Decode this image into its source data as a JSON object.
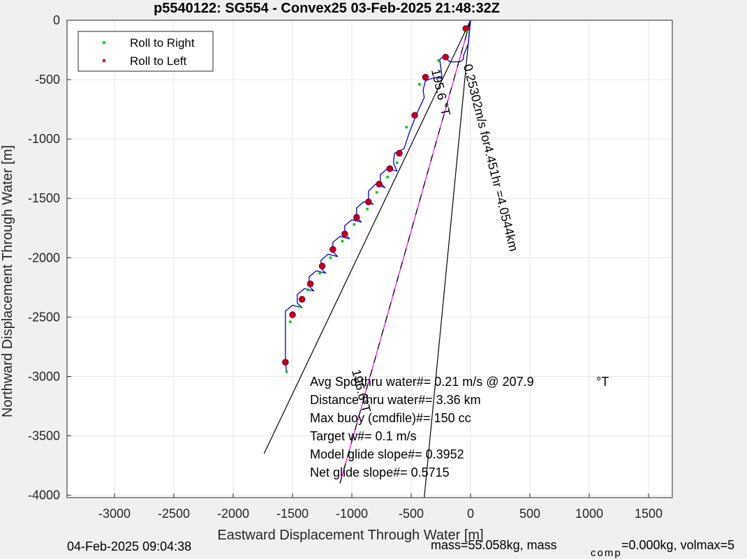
{
  "chart_data": {
    "type": "scatter",
    "title": "p5540122: SG554 - Convex25 03-Feb-2025 21:48:32Z",
    "xlabel": "Eastward Displacement Through Water [m]",
    "ylabel": "Northward Displacement Through Water [m]",
    "xlim": [
      -3400,
      1700
    ],
    "ylim": [
      -4020,
      0
    ],
    "xticks": [
      -3000,
      -2500,
      -2000,
      -1500,
      -1000,
      -500,
      0,
      500,
      1000,
      1500
    ],
    "xtick_labels": [
      "-3000",
      "-2500",
      "-2000",
      "-1500",
      "-1000",
      "-500",
      "0",
      "500",
      "1000",
      "1500"
    ],
    "yticks": [
      0,
      -500,
      -1000,
      -1500,
      -2000,
      -2500,
      -3000,
      -3500,
      -4000
    ],
    "ytick_labels": [
      "0",
      "-500",
      "-1000",
      "-1500",
      "-2000",
      "-2500",
      "-3000",
      "-3500",
      "-4000"
    ],
    "grid": true,
    "legend": {
      "position": "top-left",
      "entries": [
        {
          "label": "Roll to Right",
          "color": "#00e600"
        },
        {
          "label": "Roll to Left",
          "color": "#e60000"
        }
      ]
    },
    "track": {
      "color": "#0000cc",
      "x": [
        0,
        -20,
        -60,
        -60,
        -90,
        -170,
        -230,
        -260,
        -240,
        -250,
        -300,
        -380,
        -400,
        -390,
        -450,
        -510,
        -560,
        -640,
        -650,
        -620,
        -700,
        -760,
        -760,
        -720,
        -800,
        -860,
        -860,
        -820,
        -900,
        -960,
        -960,
        -920,
        -1000,
        -1060,
        -1060,
        -1020,
        -1100,
        -1160,
        -1160,
        -1120,
        -1200,
        -1260,
        -1260,
        -1220,
        -1300,
        -1360,
        -1360,
        -1320,
        -1400,
        -1460,
        -1460,
        -1420,
        -1500,
        -1560,
        -1560,
        -1550
      ],
      "y": [
        0,
        -200,
        -300,
        -330,
        -350,
        -350,
        -310,
        -330,
        -480,
        -490,
        -480,
        -510,
        -590,
        -650,
        -780,
        -930,
        -1080,
        -1120,
        -1200,
        -1270,
        -1250,
        -1300,
        -1370,
        -1410,
        -1380,
        -1440,
        -1520,
        -1550,
        -1530,
        -1580,
        -1660,
        -1700,
        -1680,
        -1730,
        -1800,
        -1840,
        -1820,
        -1870,
        -1950,
        -1990,
        -1970,
        -2020,
        -2090,
        -2130,
        -2110,
        -2160,
        -2240,
        -2280,
        -2260,
        -2310,
        -2380,
        -2420,
        -2400,
        -2450,
        -2880,
        -2960
      ]
    },
    "roll_to_left_points": {
      "x": [
        -40,
        -210,
        -380,
        -470,
        -600,
        -680,
        -770,
        -860,
        -960,
        -1060,
        -1160,
        -1250,
        -1350,
        -1420,
        -1500,
        -1560
      ],
      "y": [
        -70,
        -310,
        -480,
        -800,
        -1120,
        -1250,
        -1380,
        -1530,
        -1660,
        -1800,
        -1930,
        -2070,
        -2220,
        -2350,
        -2480,
        -2880
      ],
      "color": "#cc0000"
    },
    "roll_to_right_points": {
      "x": [
        -30,
        -270,
        -430,
        -540,
        -620,
        -700,
        -790,
        -870,
        -980,
        -1080,
        -1180,
        -1270,
        -1370,
        -1440,
        -1520,
        -1550
      ],
      "y": [
        -100,
        -340,
        -540,
        -900,
        -1200,
        -1320,
        -1450,
        -1590,
        -1720,
        -1860,
        -2000,
        -2130,
        -2270,
        -2410,
        -2540,
        -2960
      ],
      "color": "#00cc00"
    },
    "reference_lines": [
      {
        "name": "",
        "x": [
          0,
          -1740
        ],
        "y": [
          0,
          -3650
        ],
        "color": "#000000"
      },
      {
        "name": "",
        "x": [
          0,
          -1100
        ],
        "y": [
          0,
          -3900
        ],
        "color": "#ff00ff"
      },
      {
        "name": "",
        "x": [
          0,
          -1100
        ],
        "y": [
          0,
          -3900
        ],
        "color": "#000000",
        "dashed": true
      },
      {
        "name": "",
        "x": [
          0,
          -390
        ],
        "y": [
          0,
          -4020
        ],
        "color": "#000000"
      }
    ],
    "line_annotations": [
      {
        "text": "195.6 °T",
        "x": -330,
        "y": -420,
        "angle": 77
      },
      {
        "text": "0.25302m/s for4.451hr =4.0544km",
        "x": -60,
        "y": -380,
        "angle": 76
      },
      {
        "text": "196.6°T",
        "x": -1000,
        "y": -2950,
        "angle": 76
      }
    ],
    "text_box": {
      "lines": [
        "Avg Spd thru water#=  0.21 m/s @ 207.9",
        "Distance thru water#=  3.36 km",
        "Max buoy (cmdfile)#= 150 cc",
        "Target w#= 0.1 m/s",
        "Model glide slope#= 0.3952",
        "Net glide slope#= 0.5715"
      ],
      "degree_unit": "°T"
    }
  },
  "footer": {
    "left": "04-Feb-2025 09:04:38",
    "right_prefix": "mass=55.058kg, mass",
    "right_subscript": "comp",
    "right_suffix": " =0.000kg, volmax=5"
  }
}
